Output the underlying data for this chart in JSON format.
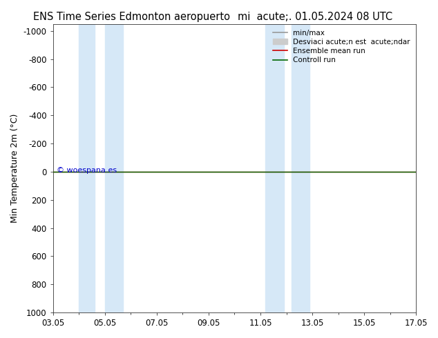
{
  "title_left": "ENS Time Series Edmonton aeropuerto",
  "title_right": "mi  acute;. 01.05.2024 08 UTC",
  "ylabel": "Min Temperature 2m (°C)",
  "ylim_bottom": 1000,
  "ylim_top": -1050,
  "xtick_positions": [
    3,
    5,
    7,
    9,
    11,
    13,
    15,
    17
  ],
  "xtick_labels": [
    "03.05",
    "05.05",
    "07.05",
    "09.05",
    "11.05",
    "13.05",
    "15.05",
    "17.05"
  ],
  "ytick_positions": [
    -1000,
    -800,
    -600,
    -400,
    -200,
    0,
    200,
    400,
    600,
    800,
    1000
  ],
  "shaded_bands": [
    [
      4.0,
      4.6
    ],
    [
      5.0,
      5.7
    ],
    [
      11.2,
      11.9
    ],
    [
      12.2,
      12.9
    ]
  ],
  "shade_color": "#d6e8f7",
  "ensemble_mean_color": "#cc0000",
  "control_run_color": "#006600",
  "minmax_color": "#999999",
  "std_color": "#cccccc",
  "legend_labels": [
    "min/max",
    "Desviaci acute;n est  acute;ndar",
    "Ensemble mean run",
    "Controll run"
  ],
  "watermark": "© woespana.es",
  "watermark_color": "#0000cc",
  "bg_color": "#ffffff",
  "title_fontsize": 10.5,
  "axis_fontsize": 9,
  "tick_fontsize": 8.5
}
